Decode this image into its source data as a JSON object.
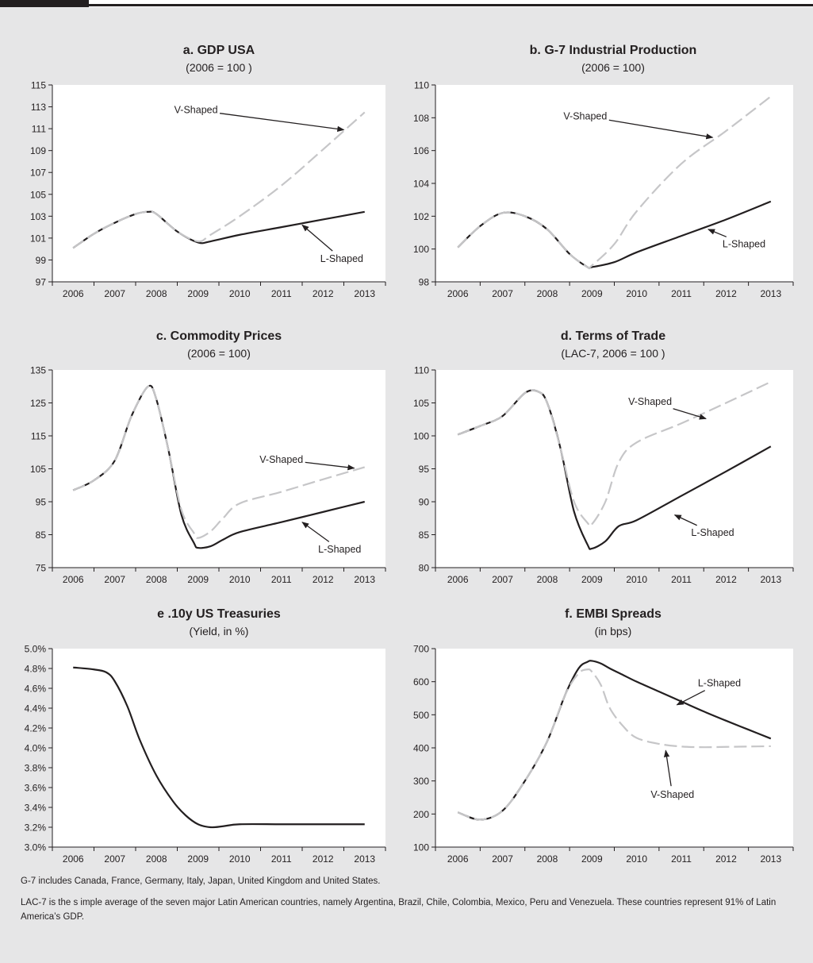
{
  "chart_data": [
    {
      "type": "line",
      "title": "a. GDP USA",
      "subtitle": "(2006 = 100 )",
      "categories": [
        "2006",
        "2007",
        "2008",
        "2009",
        "2010",
        "2011",
        "2012",
        "2013"
      ],
      "x": [
        2006,
        2006.5,
        2007,
        2007.5,
        2007.8,
        2008,
        2008.5,
        2009,
        2009.3,
        2010,
        2011,
        2012,
        2013
      ],
      "ylim": [
        97,
        115
      ],
      "yticks": [
        97,
        99,
        101,
        103,
        105,
        107,
        109,
        111,
        113,
        115
      ],
      "yformat": "int",
      "series": [
        {
          "name": "L-Shaped",
          "style": "solid",
          "color": "#231f20",
          "values": [
            100.1,
            101.4,
            102.4,
            103.2,
            103.4,
            103.2,
            101.6,
            100.6,
            100.7,
            101.3,
            102.0,
            102.7,
            103.4
          ]
        },
        {
          "name": "V-Shaped",
          "style": "dashed",
          "color": "#c6c6c8",
          "values": [
            100.1,
            101.4,
            102.4,
            103.2,
            103.4,
            103.2,
            101.6,
            100.7,
            101.3,
            103.0,
            105.8,
            109.1,
            112.5
          ]
        }
      ],
      "annotations": [
        {
          "text": "V-Shaped",
          "series": "V-Shaped",
          "lx": 2008.95,
          "ly": 112.7,
          "ax": 2012.5,
          "ay": 110.9
        },
        {
          "text": "L-Shaped",
          "series": "L-Shaped",
          "lx": 2012.45,
          "ly": 99.1,
          "ax": 2011.5,
          "ay": 102.2
        }
      ]
    },
    {
      "type": "line",
      "title": "b. G-7 Industrial Production",
      "subtitle": "(2006 = 100)",
      "categories": [
        "2006",
        "2007",
        "2008",
        "2009",
        "2010",
        "2011",
        "2012",
        "2013"
      ],
      "x": [
        2006,
        2006.5,
        2007,
        2007.5,
        2008,
        2008.5,
        2008.9,
        2009,
        2009.5,
        2010,
        2011,
        2012,
        2013
      ],
      "ylim": [
        98,
        110
      ],
      "yticks": [
        98,
        100,
        102,
        104,
        106,
        108,
        110
      ],
      "yformat": "int",
      "series": [
        {
          "name": "L-Shaped",
          "style": "solid",
          "color": "#231f20",
          "values": [
            100.1,
            101.4,
            102.2,
            102.0,
            101.2,
            99.7,
            98.9,
            98.9,
            99.2,
            99.8,
            100.8,
            101.8,
            102.9
          ]
        },
        {
          "name": "V-Shaped",
          "style": "dashed",
          "color": "#c6c6c8",
          "values": [
            100.1,
            101.4,
            102.2,
            102.0,
            101.2,
            99.7,
            98.9,
            99.0,
            100.3,
            102.3,
            105.2,
            107.2,
            109.3
          ]
        }
      ],
      "annotations": [
        {
          "text": "V-Shaped",
          "series": "V-Shaped",
          "lx": 2008.85,
          "ly": 108.1,
          "ax": 2011.7,
          "ay": 106.8
        },
        {
          "text": "L-Shaped",
          "series": "L-Shaped",
          "lx": 2012.4,
          "ly": 100.3,
          "ax": 2011.6,
          "ay": 101.2
        }
      ]
    },
    {
      "type": "line",
      "title": "c. Commodity Prices",
      "subtitle": "(2006 = 100)",
      "categories": [
        "2006",
        "2007",
        "2008",
        "2009",
        "2010",
        "2011",
        "2012",
        "2013"
      ],
      "x": [
        2006,
        2006.5,
        2007,
        2007.4,
        2007.8,
        2008,
        2008.3,
        2008.6,
        2008.9,
        2009,
        2009.3,
        2009.6,
        2010,
        2011,
        2012,
        2013
      ],
      "ylim": [
        75,
        135
      ],
      "yticks": [
        75,
        85,
        95,
        105,
        115,
        125,
        135
      ],
      "yformat": "int",
      "series": [
        {
          "name": "L-Shaped",
          "style": "solid",
          "color": "#231f20",
          "values": [
            98.5,
            101.5,
            107.5,
            121.0,
            130.0,
            126.0,
            110.0,
            91.0,
            82.5,
            81.0,
            81.5,
            83.5,
            85.8,
            88.8,
            91.9,
            95.0
          ]
        },
        {
          "name": "V-Shaped",
          "style": "dashed",
          "color": "#c6c6c8",
          "values": [
            98.5,
            101.5,
            107.5,
            121.0,
            130.0,
            126.0,
            110.0,
            92.5,
            85.5,
            84.0,
            86.0,
            90.0,
            94.5,
            98.0,
            101.8,
            105.5
          ]
        }
      ],
      "annotations": [
        {
          "text": "V-Shaped",
          "series": "V-Shaped",
          "lx": 2011.0,
          "ly": 107.8,
          "ax": 2012.75,
          "ay": 105.2
        },
        {
          "text": "L-Shaped",
          "series": "L-Shaped",
          "lx": 2012.4,
          "ly": 80.5,
          "ax": 2011.5,
          "ay": 88.8
        }
      ]
    },
    {
      "type": "line",
      "title": "d. Terms of Trade",
      "subtitle": "(LAC-7, 2006 = 100 )",
      "categories": [
        "2006",
        "2007",
        "2008",
        "2009",
        "2010",
        "2011",
        "2012",
        "2013"
      ],
      "x": [
        2006,
        2006.5,
        2007,
        2007.5,
        2007.8,
        2008,
        2008.3,
        2008.6,
        2008.9,
        2009,
        2009.3,
        2009.6,
        2010,
        2011,
        2012,
        2013
      ],
      "ylim": [
        80,
        110
      ],
      "yticks": [
        80,
        85,
        90,
        95,
        100,
        105,
        110
      ],
      "yformat": "int",
      "series": [
        {
          "name": "L-Shaped",
          "style": "solid",
          "color": "#231f20",
          "values": [
            100.2,
            101.5,
            103.0,
            106.5,
            106.7,
            105.0,
            98.0,
            88.5,
            83.5,
            82.9,
            84.0,
            86.3,
            87.2,
            90.9,
            94.6,
            98.4
          ]
        },
        {
          "name": "V-Shaped",
          "style": "dashed",
          "color": "#c6c6c8",
          "values": [
            100.2,
            101.5,
            103.0,
            106.5,
            106.7,
            105.0,
            98.0,
            90.0,
            86.8,
            86.6,
            90.0,
            96.0,
            99.0,
            101.9,
            105.0,
            108.2
          ]
        }
      ],
      "annotations": [
        {
          "text": "V-Shaped",
          "series": "V-Shaped",
          "lx": 2010.3,
          "ly": 105.2,
          "ax": 2011.55,
          "ay": 102.6
        },
        {
          "text": "L-Shaped",
          "series": "L-Shaped",
          "lx": 2011.7,
          "ly": 85.3,
          "ax": 2010.85,
          "ay": 88.0
        }
      ]
    },
    {
      "type": "line",
      "title": "e .10y US Treasuries",
      "subtitle": "(Yield, in %)",
      "categories": [
        "2006",
        "2007",
        "2008",
        "2009",
        "2010",
        "2011",
        "2012",
        "2013"
      ],
      "x": [
        2006,
        2006.5,
        2006.8,
        2007,
        2007.3,
        2007.6,
        2008,
        2008.4,
        2008.7,
        2009,
        2009.3,
        2009.6,
        2010,
        2011,
        2012,
        2013
      ],
      "ylim": [
        3.0,
        5.0
      ],
      "yticks": [
        3.0,
        3.2,
        3.4,
        3.6,
        3.8,
        4.0,
        4.2,
        4.4,
        4.6,
        4.8,
        5.0
      ],
      "yformat": "pct1",
      "series": [
        {
          "name": "",
          "style": "solid",
          "color": "#231f20",
          "values": [
            4.81,
            4.79,
            4.76,
            4.67,
            4.42,
            4.08,
            3.72,
            3.46,
            3.32,
            3.23,
            3.2,
            3.21,
            3.23,
            3.23,
            3.23,
            3.23
          ]
        }
      ],
      "annotations": []
    },
    {
      "type": "line",
      "title": "f. EMBI Spreads",
      "subtitle": "(in bps)",
      "categories": [
        "2006",
        "2007",
        "2008",
        "2009",
        "2010",
        "2011",
        "2012",
        "2013"
      ],
      "x": [
        2006,
        2006.5,
        2007,
        2007.5,
        2008,
        2008.4,
        2008.7,
        2008.9,
        2009,
        2009.2,
        2009.4,
        2009.7,
        2010,
        2010.5,
        2011,
        2011.5,
        2012,
        2012.5,
        2013
      ],
      "ylim": [
        100,
        700
      ],
      "yticks": [
        100,
        200,
        300,
        400,
        500,
        600,
        700
      ],
      "yformat": "int",
      "series": [
        {
          "name": "L-Shaped",
          "style": "solid",
          "color": "#231f20",
          "values": [
            205,
            183,
            210,
            300,
            420,
            560,
            640,
            660,
            663,
            655,
            640,
            620,
            600,
            570,
            540,
            510,
            482,
            455,
            428
          ]
        },
        {
          "name": "V-Shaped",
          "style": "dashed",
          "color": "#c6c6c8",
          "values": [
            205,
            183,
            210,
            300,
            420,
            560,
            625,
            637,
            630,
            590,
            520,
            465,
            430,
            412,
            404,
            402,
            403,
            404,
            405
          ]
        }
      ],
      "annotations": [
        {
          "text": "L-Shaped",
          "series": "L-Shaped",
          "lx": 2011.85,
          "ly": 596,
          "ax": 2010.9,
          "ay": 530
        },
        {
          "text": "V-Shaped",
          "series": "V-Shaped",
          "lx": 2010.8,
          "ly": 258,
          "ax": 2010.65,
          "ay": 392
        }
      ]
    }
  ],
  "notes": {
    "note1": "G-7 includes Canada, France, Germany, Italy, Japan, United Kingdom and United States.",
    "note2": "LAC-7 is the s imple average of the seven major Latin American countries, namely Argentina, Brazil, Chile, Colombia, Mexico, Peru and Venezuela. These countries represent 91% of Latin America’s GDP."
  }
}
